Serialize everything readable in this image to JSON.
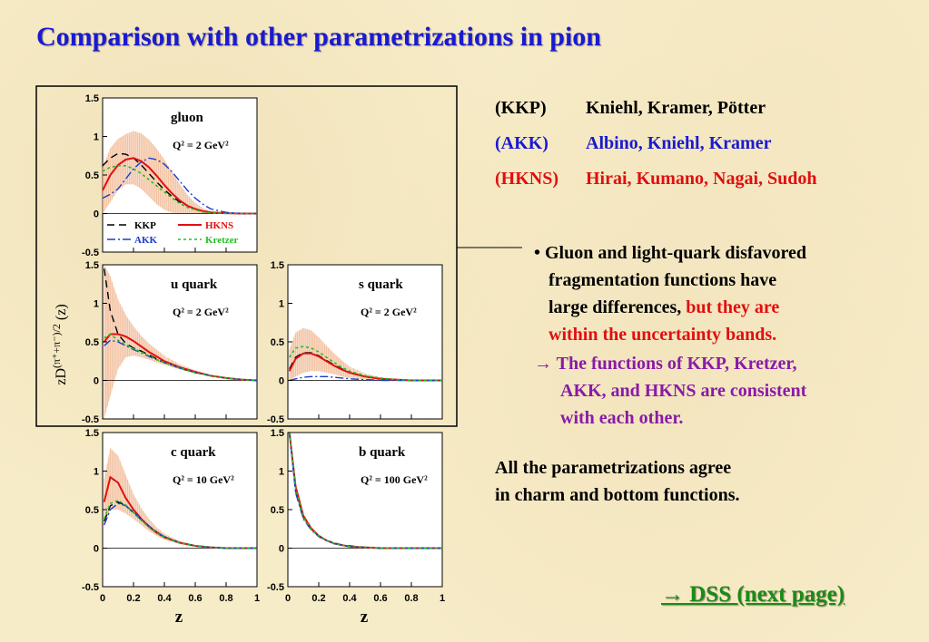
{
  "title": "Comparison with other parametrizations in pion",
  "refs": [
    {
      "abbr": "(KKP)",
      "names": "Kniehl, Kramer, Pötter",
      "color": "#000000"
    },
    {
      "abbr": "(AKK)",
      "names": "Albino, Kniehl, Kramer",
      "color": "#1a1ad0"
    },
    {
      "abbr": "(HKNS)",
      "names": "Hirai, Kumano, Nagai, Sudoh",
      "color": "#e01010"
    }
  ],
  "bullet": {
    "line1": "• Gluon and light-quark disfavored",
    "line2": "fragmentation functions have",
    "line3a": "large differences, ",
    "line3b": "but they are",
    "line4": "within the uncertainty bands."
  },
  "arrow_text": {
    "line1": "→ The functions of KKP, Kretzer,",
    "line2": "AKK, and HKNS are consistent",
    "line3": "with each other."
  },
  "agree": {
    "line1": "All the parametrizations agree",
    "line2": "in charm and bottom functions."
  },
  "dss_link": "→ DSS (next page)",
  "ylabel_main": "zD",
  "ylabel_sup": "(π⁺+π⁻)/2",
  "ylabel_tail": " (z)",
  "xlabel": "z",
  "legend": {
    "kkp": "KKP",
    "hkns": "HKNS",
    "akk": "AKK",
    "kretzer": "Kretzer"
  },
  "colors": {
    "kkp": "#000000",
    "hkns": "#e01010",
    "akk": "#1a3ad0",
    "kretzer": "#20c020",
    "band": "#f0b080"
  },
  "chart_data": [
    {
      "type": "line",
      "panel": "gluon",
      "label": "gluon",
      "scale": "Q² = 2 GeV²",
      "xlim": [
        0,
        1
      ],
      "ylim": [
        -0.5,
        1.5
      ],
      "x": [
        0,
        0.05,
        0.1,
        0.15,
        0.2,
        0.25,
        0.3,
        0.35,
        0.4,
        0.45,
        0.5,
        0.55,
        0.6,
        0.65,
        0.7,
        0.8,
        0.9,
        1.0
      ],
      "series": [
        {
          "name": "KKP",
          "values": [
            0.62,
            0.72,
            0.78,
            0.77,
            0.72,
            0.63,
            0.52,
            0.41,
            0.31,
            0.22,
            0.15,
            0.1,
            0.06,
            0.03,
            0.015,
            0.005,
            0.0,
            0.0
          ]
        },
        {
          "name": "HKNS",
          "values": [
            0.3,
            0.5,
            0.63,
            0.7,
            0.72,
            0.68,
            0.6,
            0.49,
            0.37,
            0.26,
            0.17,
            0.1,
            0.06,
            0.03,
            0.015,
            0.005,
            0.0,
            0.0
          ]
        },
        {
          "name": "AKK",
          "values": [
            0.2,
            0.25,
            0.32,
            0.45,
            0.58,
            0.67,
            0.72,
            0.7,
            0.64,
            0.54,
            0.42,
            0.3,
            0.2,
            0.12,
            0.06,
            0.015,
            0.0,
            0.0
          ]
        },
        {
          "name": "Kretzer",
          "values": [
            0.55,
            0.6,
            0.62,
            0.62,
            0.58,
            0.52,
            0.44,
            0.36,
            0.28,
            0.2,
            0.13,
            0.08,
            0.05,
            0.02,
            0.01,
            0.0,
            0.0,
            0.0
          ]
        }
      ],
      "band_lower": [
        0.0,
        0.15,
        0.3,
        0.38,
        0.38,
        0.32,
        0.22,
        0.12,
        0.05,
        0.01,
        0.0,
        0.0,
        0.0,
        0.0,
        0.0,
        0.0,
        0.0,
        0.0
      ],
      "band_upper": [
        0.6,
        0.85,
        0.97,
        1.03,
        1.07,
        1.04,
        0.96,
        0.84,
        0.7,
        0.54,
        0.38,
        0.24,
        0.14,
        0.07,
        0.03,
        0.01,
        0.0,
        0.0
      ]
    },
    {
      "type": "line",
      "panel": "u",
      "label": "u quark",
      "scale": "Q² = 2 GeV²",
      "xlim": [
        0,
        1
      ],
      "ylim": [
        -0.5,
        1.5
      ],
      "x": [
        0.01,
        0.05,
        0.1,
        0.15,
        0.2,
        0.25,
        0.3,
        0.35,
        0.4,
        0.5,
        0.6,
        0.7,
        0.8,
        0.9,
        1.0
      ],
      "series": [
        {
          "name": "KKP",
          "values": [
            1.45,
            0.9,
            0.6,
            0.48,
            0.42,
            0.38,
            0.33,
            0.28,
            0.23,
            0.16,
            0.1,
            0.06,
            0.03,
            0.01,
            0.0
          ]
        },
        {
          "name": "HKNS",
          "values": [
            0.5,
            0.6,
            0.6,
            0.57,
            0.51,
            0.44,
            0.37,
            0.31,
            0.25,
            0.17,
            0.11,
            0.06,
            0.03,
            0.01,
            0.0
          ]
        },
        {
          "name": "AKK",
          "values": [
            0.45,
            0.52,
            0.5,
            0.45,
            0.4,
            0.36,
            0.31,
            0.27,
            0.23,
            0.16,
            0.1,
            0.06,
            0.03,
            0.01,
            0.0
          ]
        },
        {
          "name": "Kretzer",
          "values": [
            0.55,
            0.6,
            0.52,
            0.46,
            0.41,
            0.37,
            0.32,
            0.27,
            0.23,
            0.16,
            0.1,
            0.06,
            0.03,
            0.01,
            0.0
          ]
        }
      ],
      "band_lower": [
        -0.5,
        -0.2,
        0.15,
        0.3,
        0.32,
        0.3,
        0.27,
        0.23,
        0.2,
        0.14,
        0.09,
        0.05,
        0.02,
        0.0,
        0.0
      ],
      "band_upper": [
        1.5,
        1.35,
        1.05,
        0.85,
        0.7,
        0.58,
        0.48,
        0.4,
        0.32,
        0.21,
        0.13,
        0.07,
        0.04,
        0.02,
        0.0
      ]
    },
    {
      "type": "line",
      "panel": "s",
      "label": "s quark",
      "scale": "Q² = 2 GeV²",
      "xlim": [
        0,
        1
      ],
      "ylim": [
        -0.5,
        1.5
      ],
      "x": [
        0.01,
        0.05,
        0.1,
        0.15,
        0.2,
        0.25,
        0.3,
        0.35,
        0.4,
        0.5,
        0.6,
        0.7,
        0.8,
        0.9,
        1.0
      ],
      "series": [
        {
          "name": "KKP",
          "values": [
            0.15,
            0.3,
            0.36,
            0.36,
            0.32,
            0.26,
            0.2,
            0.15,
            0.1,
            0.05,
            0.02,
            0.01,
            0.0,
            0.0,
            0.0
          ]
        },
        {
          "name": "HKNS",
          "values": [
            0.12,
            0.28,
            0.35,
            0.35,
            0.31,
            0.25,
            0.19,
            0.14,
            0.1,
            0.05,
            0.02,
            0.01,
            0.0,
            0.0,
            0.0
          ]
        },
        {
          "name": "AKK",
          "values": [
            0.0,
            0.02,
            0.04,
            0.05,
            0.05,
            0.05,
            0.04,
            0.03,
            0.02,
            0.01,
            0.0,
            0.0,
            0.0,
            0.0,
            0.0
          ]
        },
        {
          "name": "Kretzer",
          "values": [
            0.3,
            0.42,
            0.44,
            0.42,
            0.37,
            0.3,
            0.23,
            0.17,
            0.12,
            0.06,
            0.03,
            0.01,
            0.0,
            0.0,
            0.0
          ]
        }
      ],
      "band_lower": [
        0.0,
        0.05,
        0.1,
        0.12,
        0.12,
        0.1,
        0.08,
        0.05,
        0.03,
        0.01,
        0.0,
        0.0,
        0.0,
        0.0,
        0.0
      ],
      "band_upper": [
        0.4,
        0.62,
        0.68,
        0.65,
        0.56,
        0.45,
        0.35,
        0.26,
        0.18,
        0.09,
        0.04,
        0.02,
        0.0,
        0.0,
        0.0
      ]
    },
    {
      "type": "line",
      "panel": "c",
      "label": "c quark",
      "scale": "Q² = 10 GeV²",
      "xlim": [
        0,
        1
      ],
      "ylim": [
        -0.5,
        1.5
      ],
      "x": [
        0.01,
        0.05,
        0.1,
        0.15,
        0.2,
        0.25,
        0.3,
        0.35,
        0.4,
        0.5,
        0.6,
        0.7,
        0.8,
        0.9,
        1.0
      ],
      "series": [
        {
          "name": "KKP",
          "values": [
            0.35,
            0.55,
            0.6,
            0.55,
            0.46,
            0.37,
            0.28,
            0.21,
            0.15,
            0.07,
            0.03,
            0.01,
            0.0,
            0.0,
            0.0
          ]
        },
        {
          "name": "HKNS",
          "values": [
            0.6,
            0.92,
            0.85,
            0.65,
            0.5,
            0.38,
            0.28,
            0.2,
            0.14,
            0.07,
            0.03,
            0.01,
            0.0,
            0.0,
            0.0
          ]
        },
        {
          "name": "AKK",
          "values": [
            0.3,
            0.5,
            0.58,
            0.55,
            0.47,
            0.38,
            0.29,
            0.21,
            0.15,
            0.07,
            0.03,
            0.01,
            0.0,
            0.0,
            0.0
          ]
        },
        {
          "name": "Kretzer",
          "values": [
            0.38,
            0.58,
            0.62,
            0.56,
            0.46,
            0.36,
            0.27,
            0.2,
            0.14,
            0.07,
            0.03,
            0.01,
            0.0,
            0.0,
            0.0
          ]
        }
      ],
      "band_lower": [
        0.3,
        0.5,
        0.5,
        0.45,
        0.38,
        0.3,
        0.22,
        0.16,
        0.11,
        0.05,
        0.02,
        0.0,
        0.0,
        0.0,
        0.0
      ],
      "band_upper": [
        0.9,
        1.3,
        1.2,
        0.95,
        0.7,
        0.52,
        0.38,
        0.27,
        0.19,
        0.09,
        0.04,
        0.02,
        0.0,
        0.0,
        0.0
      ]
    },
    {
      "type": "line",
      "panel": "b",
      "label": "b quark",
      "scale": "Q² = 100 GeV²",
      "xlim": [
        0,
        1
      ],
      "ylim": [
        -0.5,
        1.5
      ],
      "x": [
        0.01,
        0.05,
        0.1,
        0.15,
        0.2,
        0.25,
        0.3,
        0.35,
        0.4,
        0.5,
        0.6,
        0.7,
        0.8,
        0.9,
        1.0
      ],
      "series": [
        {
          "name": "KKP",
          "values": [
            1.5,
            0.75,
            0.4,
            0.25,
            0.16,
            0.1,
            0.07,
            0.04,
            0.03,
            0.01,
            0.0,
            0.0,
            0.0,
            0.0,
            0.0
          ]
        },
        {
          "name": "HKNS",
          "values": [
            1.5,
            0.8,
            0.42,
            0.26,
            0.16,
            0.1,
            0.06,
            0.04,
            0.02,
            0.01,
            0.0,
            0.0,
            0.0,
            0.0,
            0.0
          ]
        },
        {
          "name": "AKK",
          "values": [
            1.5,
            0.72,
            0.38,
            0.24,
            0.15,
            0.1,
            0.06,
            0.04,
            0.02,
            0.01,
            0.0,
            0.0,
            0.0,
            0.0,
            0.0
          ]
        },
        {
          "name": "Kretzer",
          "values": [
            1.5,
            0.78,
            0.4,
            0.25,
            0.16,
            0.1,
            0.06,
            0.04,
            0.02,
            0.01,
            0.0,
            0.0,
            0.0,
            0.0,
            0.0
          ]
        }
      ],
      "band_lower": [
        1.5,
        0.7,
        0.36,
        0.22,
        0.14,
        0.09,
        0.05,
        0.03,
        0.02,
        0.0,
        0.0,
        0.0,
        0.0,
        0.0,
        0.0
      ],
      "band_upper": [
        1.5,
        0.86,
        0.45,
        0.28,
        0.18,
        0.11,
        0.07,
        0.05,
        0.03,
        0.01,
        0.0,
        0.0,
        0.0,
        0.0,
        0.0
      ]
    }
  ]
}
